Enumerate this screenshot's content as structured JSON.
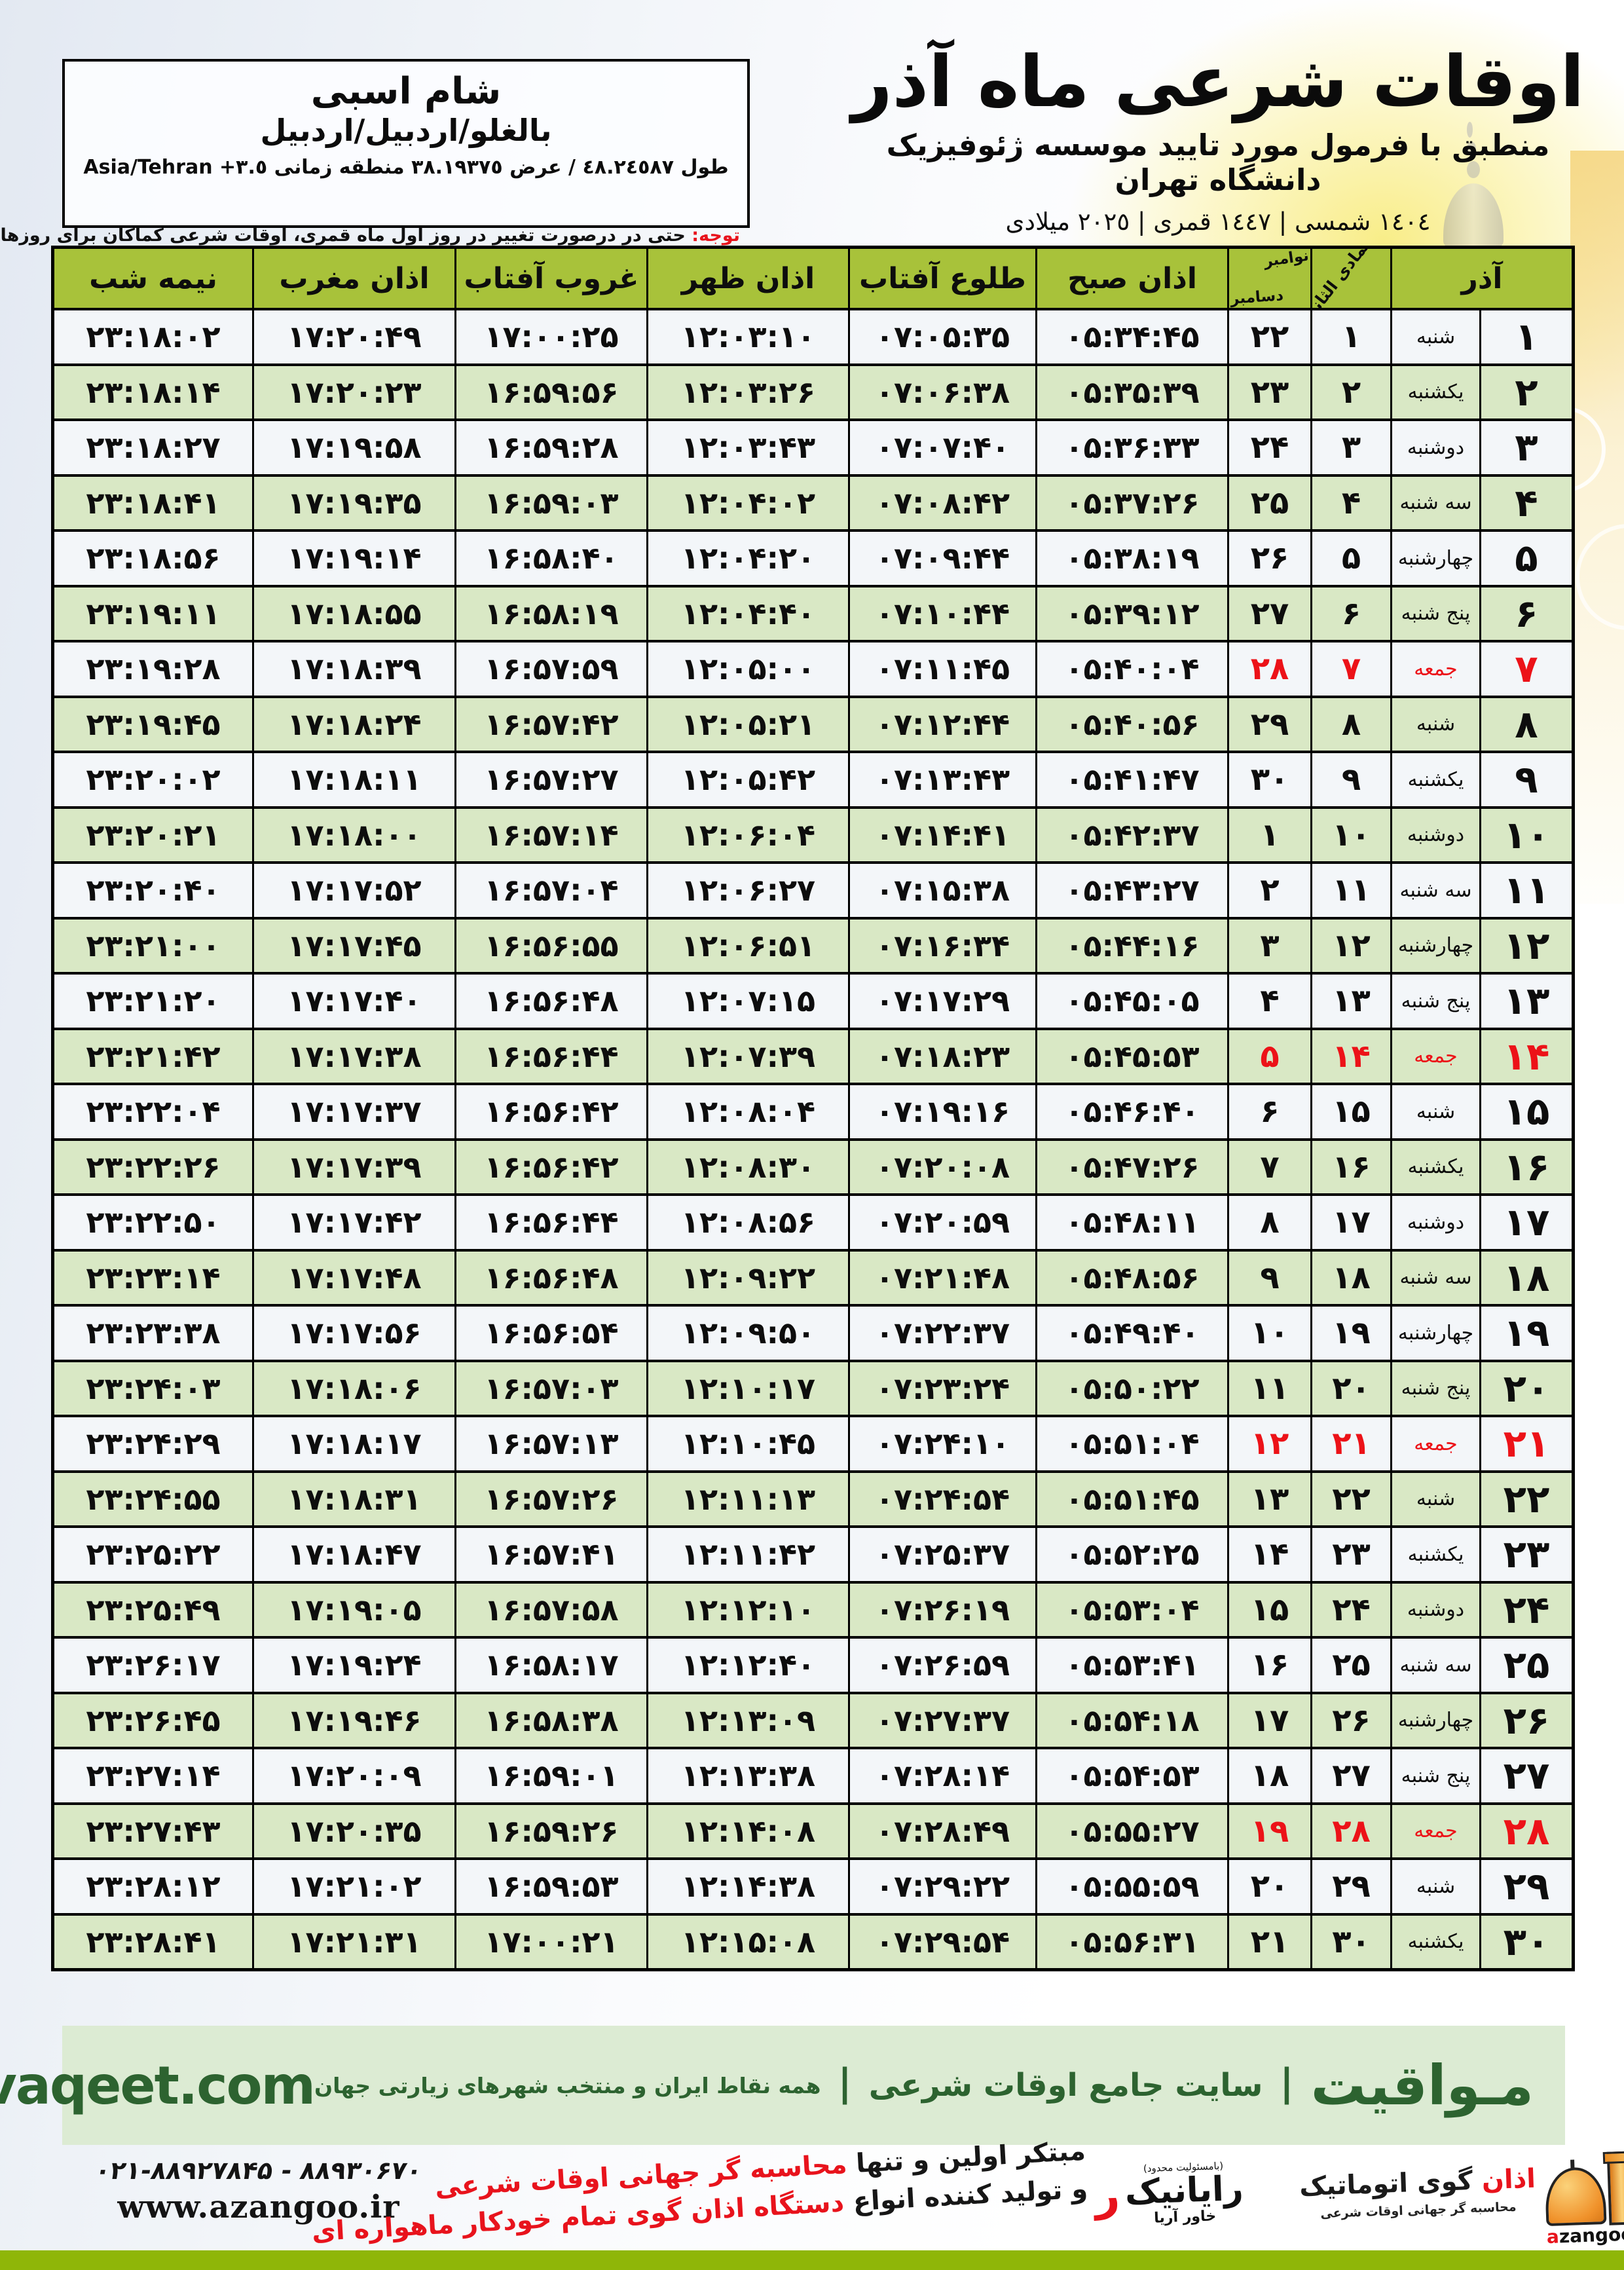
{
  "header": {
    "title": "اوقات شرعی ماه آذر",
    "subtitle": "منطبق با فرمول مورد تایید موسسه ژئوفیزیک دانشگاه تهران",
    "date_line": "١٤٠٤ شمسی | ١٤٤٧ قمری | ٢٠٢٥ میلادی",
    "location": {
      "name": "شام اسبی",
      "region": "بالغلو/اردبیل/اردبیل",
      "coords": "طول ٤٨.٢٤٥٨٧ / عرض ٣٨.١٩٣٧٥ منطقه زمانی ٣.٥+ Asia/Tehran"
    },
    "notice_label": "توجه:",
    "notice_text": " حتی در درصورت تغییر در روز اول ماه قمری، اوقات شرعی کماکان برای روزهای شمسی و میلادی معتبر است."
  },
  "table": {
    "headers": {
      "azar": "آذر",
      "lunar_month": "جمادی الثانی",
      "greg_top": "نوامبر",
      "greg_bottom": "دسامبر",
      "fajr": "اذان صبح",
      "sunrise": "طلوع آفتاب",
      "dhuhr": "اذان ظهر",
      "sunset": "غروب آفتاب",
      "maghrib": "اذان مغرب",
      "midnight": "نیمه شب"
    },
    "rows": [
      {
        "azar": "۱",
        "weekday": "شنبه",
        "lunar": "۱",
        "greg": "۲۲",
        "fajr": "۰۵:۳۴:۴۵",
        "sunrise": "۰۷:۰۵:۳۵",
        "dhuhr": "۱۲:۰۳:۱۰",
        "sunset": "۱۷:۰۰:۲۵",
        "maghrib": "۱۷:۲۰:۴۹",
        "midnight": "۲۳:۱۸:۰۲",
        "friday": false
      },
      {
        "azar": "۲",
        "weekday": "یکشنبه",
        "lunar": "۲",
        "greg": "۲۳",
        "fajr": "۰۵:۳۵:۳۹",
        "sunrise": "۰۷:۰۶:۳۸",
        "dhuhr": "۱۲:۰۳:۲۶",
        "sunset": "۱۶:۵۹:۵۶",
        "maghrib": "۱۷:۲۰:۲۳",
        "midnight": "۲۳:۱۸:۱۴",
        "friday": false
      },
      {
        "azar": "۳",
        "weekday": "دوشنبه",
        "lunar": "۳",
        "greg": "۲۴",
        "fajr": "۰۵:۳۶:۳۳",
        "sunrise": "۰۷:۰۷:۴۰",
        "dhuhr": "۱۲:۰۳:۴۳",
        "sunset": "۱۶:۵۹:۲۸",
        "maghrib": "۱۷:۱۹:۵۸",
        "midnight": "۲۳:۱۸:۲۷",
        "friday": false
      },
      {
        "azar": "۴",
        "weekday": "سه شنبه",
        "lunar": "۴",
        "greg": "۲۵",
        "fajr": "۰۵:۳۷:۲۶",
        "sunrise": "۰۷:۰۸:۴۲",
        "dhuhr": "۱۲:۰۴:۰۲",
        "sunset": "۱۶:۵۹:۰۳",
        "maghrib": "۱۷:۱۹:۳۵",
        "midnight": "۲۳:۱۸:۴۱",
        "friday": false
      },
      {
        "azar": "۵",
        "weekday": "چهارشنبه",
        "lunar": "۵",
        "greg": "۲۶",
        "fajr": "۰۵:۳۸:۱۹",
        "sunrise": "۰۷:۰۹:۴۴",
        "dhuhr": "۱۲:۰۴:۲۰",
        "sunset": "۱۶:۵۸:۴۰",
        "maghrib": "۱۷:۱۹:۱۴",
        "midnight": "۲۳:۱۸:۵۶",
        "friday": false
      },
      {
        "azar": "۶",
        "weekday": "پنج شنبه",
        "lunar": "۶",
        "greg": "۲۷",
        "fajr": "۰۵:۳۹:۱۲",
        "sunrise": "۰۷:۱۰:۴۴",
        "dhuhr": "۱۲:۰۴:۴۰",
        "sunset": "۱۶:۵۸:۱۹",
        "maghrib": "۱۷:۱۸:۵۵",
        "midnight": "۲۳:۱۹:۱۱",
        "friday": false
      },
      {
        "azar": "۷",
        "weekday": "جمعه",
        "lunar": "۷",
        "greg": "۲۸",
        "fajr": "۰۵:۴۰:۰۴",
        "sunrise": "۰۷:۱۱:۴۵",
        "dhuhr": "۱۲:۰۵:۰۰",
        "sunset": "۱۶:۵۷:۵۹",
        "maghrib": "۱۷:۱۸:۳۹",
        "midnight": "۲۳:۱۹:۲۸",
        "friday": true
      },
      {
        "azar": "۸",
        "weekday": "شنبه",
        "lunar": "۸",
        "greg": "۲۹",
        "fajr": "۰۵:۴۰:۵۶",
        "sunrise": "۰۷:۱۲:۴۴",
        "dhuhr": "۱۲:۰۵:۲۱",
        "sunset": "۱۶:۵۷:۴۲",
        "maghrib": "۱۷:۱۸:۲۴",
        "midnight": "۲۳:۱۹:۴۵",
        "friday": false
      },
      {
        "azar": "۹",
        "weekday": "یکشنبه",
        "lunar": "۹",
        "greg": "۳۰",
        "fajr": "۰۵:۴۱:۴۷",
        "sunrise": "۰۷:۱۳:۴۳",
        "dhuhr": "۱۲:۰۵:۴۲",
        "sunset": "۱۶:۵۷:۲۷",
        "maghrib": "۱۷:۱۸:۱۱",
        "midnight": "۲۳:۲۰:۰۲",
        "friday": false
      },
      {
        "azar": "۱۰",
        "weekday": "دوشنبه",
        "lunar": "۱۰",
        "greg": "۱",
        "fajr": "۰۵:۴۲:۳۷",
        "sunrise": "۰۷:۱۴:۴۱",
        "dhuhr": "۱۲:۰۶:۰۴",
        "sunset": "۱۶:۵۷:۱۴",
        "maghrib": "۱۷:۱۸:۰۰",
        "midnight": "۲۳:۲۰:۲۱",
        "friday": false
      },
      {
        "azar": "۱۱",
        "weekday": "سه شنبه",
        "lunar": "۱۱",
        "greg": "۲",
        "fajr": "۰۵:۴۳:۲۷",
        "sunrise": "۰۷:۱۵:۳۸",
        "dhuhr": "۱۲:۰۶:۲۷",
        "sunset": "۱۶:۵۷:۰۴",
        "maghrib": "۱۷:۱۷:۵۲",
        "midnight": "۲۳:۲۰:۴۰",
        "friday": false
      },
      {
        "azar": "۱۲",
        "weekday": "چهارشنبه",
        "lunar": "۱۲",
        "greg": "۳",
        "fajr": "۰۵:۴۴:۱۶",
        "sunrise": "۰۷:۱۶:۳۴",
        "dhuhr": "۱۲:۰۶:۵۱",
        "sunset": "۱۶:۵۶:۵۵",
        "maghrib": "۱۷:۱۷:۴۵",
        "midnight": "۲۳:۲۱:۰۰",
        "friday": false
      },
      {
        "azar": "۱۳",
        "weekday": "پنج شنبه",
        "lunar": "۱۳",
        "greg": "۴",
        "fajr": "۰۵:۴۵:۰۵",
        "sunrise": "۰۷:۱۷:۲۹",
        "dhuhr": "۱۲:۰۷:۱۵",
        "sunset": "۱۶:۵۶:۴۸",
        "maghrib": "۱۷:۱۷:۴۰",
        "midnight": "۲۳:۲۱:۲۰",
        "friday": false
      },
      {
        "azar": "۱۴",
        "weekday": "جمعه",
        "lunar": "۱۴",
        "greg": "۵",
        "fajr": "۰۵:۴۵:۵۳",
        "sunrise": "۰۷:۱۸:۲۳",
        "dhuhr": "۱۲:۰۷:۳۹",
        "sunset": "۱۶:۵۶:۴۴",
        "maghrib": "۱۷:۱۷:۳۸",
        "midnight": "۲۳:۲۱:۴۲",
        "friday": true
      },
      {
        "azar": "۱۵",
        "weekday": "شنبه",
        "lunar": "۱۵",
        "greg": "۶",
        "fajr": "۰۵:۴۶:۴۰",
        "sunrise": "۰۷:۱۹:۱۶",
        "dhuhr": "۱۲:۰۸:۰۴",
        "sunset": "۱۶:۵۶:۴۲",
        "maghrib": "۱۷:۱۷:۳۷",
        "midnight": "۲۳:۲۲:۰۴",
        "friday": false
      },
      {
        "azar": "۱۶",
        "weekday": "یکشنبه",
        "lunar": "۱۶",
        "greg": "۷",
        "fajr": "۰۵:۴۷:۲۶",
        "sunrise": "۰۷:۲۰:۰۸",
        "dhuhr": "۱۲:۰۸:۳۰",
        "sunset": "۱۶:۵۶:۴۲",
        "maghrib": "۱۷:۱۷:۳۹",
        "midnight": "۲۳:۲۲:۲۶",
        "friday": false
      },
      {
        "azar": "۱۷",
        "weekday": "دوشنبه",
        "lunar": "۱۷",
        "greg": "۸",
        "fajr": "۰۵:۴۸:۱۱",
        "sunrise": "۰۷:۲۰:۵۹",
        "dhuhr": "۱۲:۰۸:۵۶",
        "sunset": "۱۶:۵۶:۴۴",
        "maghrib": "۱۷:۱۷:۴۲",
        "midnight": "۲۳:۲۲:۵۰",
        "friday": false
      },
      {
        "azar": "۱۸",
        "weekday": "سه شنبه",
        "lunar": "۱۸",
        "greg": "۹",
        "fajr": "۰۵:۴۸:۵۶",
        "sunrise": "۰۷:۲۱:۴۸",
        "dhuhr": "۱۲:۰۹:۲۲",
        "sunset": "۱۶:۵۶:۴۸",
        "maghrib": "۱۷:۱۷:۴۸",
        "midnight": "۲۳:۲۳:۱۴",
        "friday": false
      },
      {
        "azar": "۱۹",
        "weekday": "چهارشنبه",
        "lunar": "۱۹",
        "greg": "۱۰",
        "fajr": "۰۵:۴۹:۴۰",
        "sunrise": "۰۷:۲۲:۳۷",
        "dhuhr": "۱۲:۰۹:۵۰",
        "sunset": "۱۶:۵۶:۵۴",
        "maghrib": "۱۷:۱۷:۵۶",
        "midnight": "۲۳:۲۳:۳۸",
        "friday": false
      },
      {
        "azar": "۲۰",
        "weekday": "پنج شنبه",
        "lunar": "۲۰",
        "greg": "۱۱",
        "fajr": "۰۵:۵۰:۲۲",
        "sunrise": "۰۷:۲۳:۲۴",
        "dhuhr": "۱۲:۱۰:۱۷",
        "sunset": "۱۶:۵۷:۰۳",
        "maghrib": "۱۷:۱۸:۰۶",
        "midnight": "۲۳:۲۴:۰۳",
        "friday": false
      },
      {
        "azar": "۲۱",
        "weekday": "جمعه",
        "lunar": "۲۱",
        "greg": "۱۲",
        "fajr": "۰۵:۵۱:۰۴",
        "sunrise": "۰۷:۲۴:۱۰",
        "dhuhr": "۱۲:۱۰:۴۵",
        "sunset": "۱۶:۵۷:۱۳",
        "maghrib": "۱۷:۱۸:۱۷",
        "midnight": "۲۳:۲۴:۲۹",
        "friday": true
      },
      {
        "azar": "۲۲",
        "weekday": "شنبه",
        "lunar": "۲۲",
        "greg": "۱۳",
        "fajr": "۰۵:۵۱:۴۵",
        "sunrise": "۰۷:۲۴:۵۴",
        "dhuhr": "۱۲:۱۱:۱۳",
        "sunset": "۱۶:۵۷:۲۶",
        "maghrib": "۱۷:۱۸:۳۱",
        "midnight": "۲۳:۲۴:۵۵",
        "friday": false
      },
      {
        "azar": "۲۳",
        "weekday": "یکشنبه",
        "lunar": "۲۳",
        "greg": "۱۴",
        "fajr": "۰۵:۵۲:۲۵",
        "sunrise": "۰۷:۲۵:۳۷",
        "dhuhr": "۱۲:۱۱:۴۲",
        "sunset": "۱۶:۵۷:۴۱",
        "maghrib": "۱۷:۱۸:۴۷",
        "midnight": "۲۳:۲۵:۲۲",
        "friday": false
      },
      {
        "azar": "۲۴",
        "weekday": "دوشنبه",
        "lunar": "۲۴",
        "greg": "۱۵",
        "fajr": "۰۵:۵۳:۰۴",
        "sunrise": "۰۷:۲۶:۱۹",
        "dhuhr": "۱۲:۱۲:۱۰",
        "sunset": "۱۶:۵۷:۵۸",
        "maghrib": "۱۷:۱۹:۰۵",
        "midnight": "۲۳:۲۵:۴۹",
        "friday": false
      },
      {
        "azar": "۲۵",
        "weekday": "سه شنبه",
        "lunar": "۲۵",
        "greg": "۱۶",
        "fajr": "۰۵:۵۳:۴۱",
        "sunrise": "۰۷:۲۶:۵۹",
        "dhuhr": "۱۲:۱۲:۴۰",
        "sunset": "۱۶:۵۸:۱۷",
        "maghrib": "۱۷:۱۹:۲۴",
        "midnight": "۲۳:۲۶:۱۷",
        "friday": false
      },
      {
        "azar": "۲۶",
        "weekday": "چهارشنبه",
        "lunar": "۲۶",
        "greg": "۱۷",
        "fajr": "۰۵:۵۴:۱۸",
        "sunrise": "۰۷:۲۷:۳۷",
        "dhuhr": "۱۲:۱۳:۰۹",
        "sunset": "۱۶:۵۸:۳۸",
        "maghrib": "۱۷:۱۹:۴۶",
        "midnight": "۲۳:۲۶:۴۵",
        "friday": false
      },
      {
        "azar": "۲۷",
        "weekday": "پنج شنبه",
        "lunar": "۲۷",
        "greg": "۱۸",
        "fajr": "۰۵:۵۴:۵۳",
        "sunrise": "۰۷:۲۸:۱۴",
        "dhuhr": "۱۲:۱۳:۳۸",
        "sunset": "۱۶:۵۹:۰۱",
        "maghrib": "۱۷:۲۰:۰۹",
        "midnight": "۲۳:۲۷:۱۴",
        "friday": false
      },
      {
        "azar": "۲۸",
        "weekday": "جمعه",
        "lunar": "۲۸",
        "greg": "۱۹",
        "fajr": "۰۵:۵۵:۲۷",
        "sunrise": "۰۷:۲۸:۴۹",
        "dhuhr": "۱۲:۱۴:۰۸",
        "sunset": "۱۶:۵۹:۲۶",
        "maghrib": "۱۷:۲۰:۳۵",
        "midnight": "۲۳:۲۷:۴۳",
        "friday": true
      },
      {
        "azar": "۲۹",
        "weekday": "شنبه",
        "lunar": "۲۹",
        "greg": "۲۰",
        "fajr": "۰۵:۵۵:۵۹",
        "sunrise": "۰۷:۲۹:۲۲",
        "dhuhr": "۱۲:۱۴:۳۸",
        "sunset": "۱۶:۵۹:۵۳",
        "maghrib": "۱۷:۲۱:۰۲",
        "midnight": "۲۳:۲۸:۱۲",
        "friday": false
      },
      {
        "azar": "۳۰",
        "weekday": "یکشنبه",
        "lunar": "۳۰",
        "greg": "۲۱",
        "fajr": "۰۵:۵۶:۳۱",
        "sunrise": "۰۷:۲۹:۵۴",
        "dhuhr": "۱۲:۱۵:۰۸",
        "sunset": "۱۷:۰۰:۲۱",
        "maghrib": "۱۷:۲۱:۳۱",
        "midnight": "۲۳:۲۸:۴۱",
        "friday": false
      }
    ]
  },
  "footer": {
    "brand_fa": "مـواقیت",
    "separator": "|",
    "brand_desc1": "سایت جامع اوقات شرعی",
    "brand_desc2": "همه نقاط ایران و منتخب شهرهای زیارتی جهان",
    "brand_url": "mavaqeet.com",
    "phone": "۰۲۱-۸۸۹۲۷۸۴۵ - ۸۸۹۳۰۶۷۰",
    "website": "www.azangoo.ir",
    "promo_line1_black": "مبتکر اولین و تنها ",
    "promo_line1_red": "محاسبه گر جهانی اوقات شرعی",
    "promo_line2_black": "و تولید کننده انواع ",
    "promo_line2_red": "دستگاه اذان گوی تمام خودکار ماهواره ای",
    "rayanik_mark": "ر",
    "rayanik_note": "(بامسئولیت محدود)",
    "rayanik_name": "رایانیک",
    "rayanik_sub": "خاور آریا",
    "azangoo_title_red": "اذان",
    "azangoo_title_black": " گوی اتوماتیک",
    "azangoo_tagline": "محاسبه گر جهانی اوقات شرعی",
    "azangoo_latin_red": "a",
    "azangoo_latin_black": "zangoo"
  },
  "colors": {
    "header_green": "#a8c23a",
    "row_green": "#d9e8c5",
    "row_light": "#f3f6f9",
    "friday_red": "#ec1218",
    "footer_band": "#dcebd3",
    "footer_text_green": "#2d6330",
    "bottom_bar": "#8fb608"
  }
}
